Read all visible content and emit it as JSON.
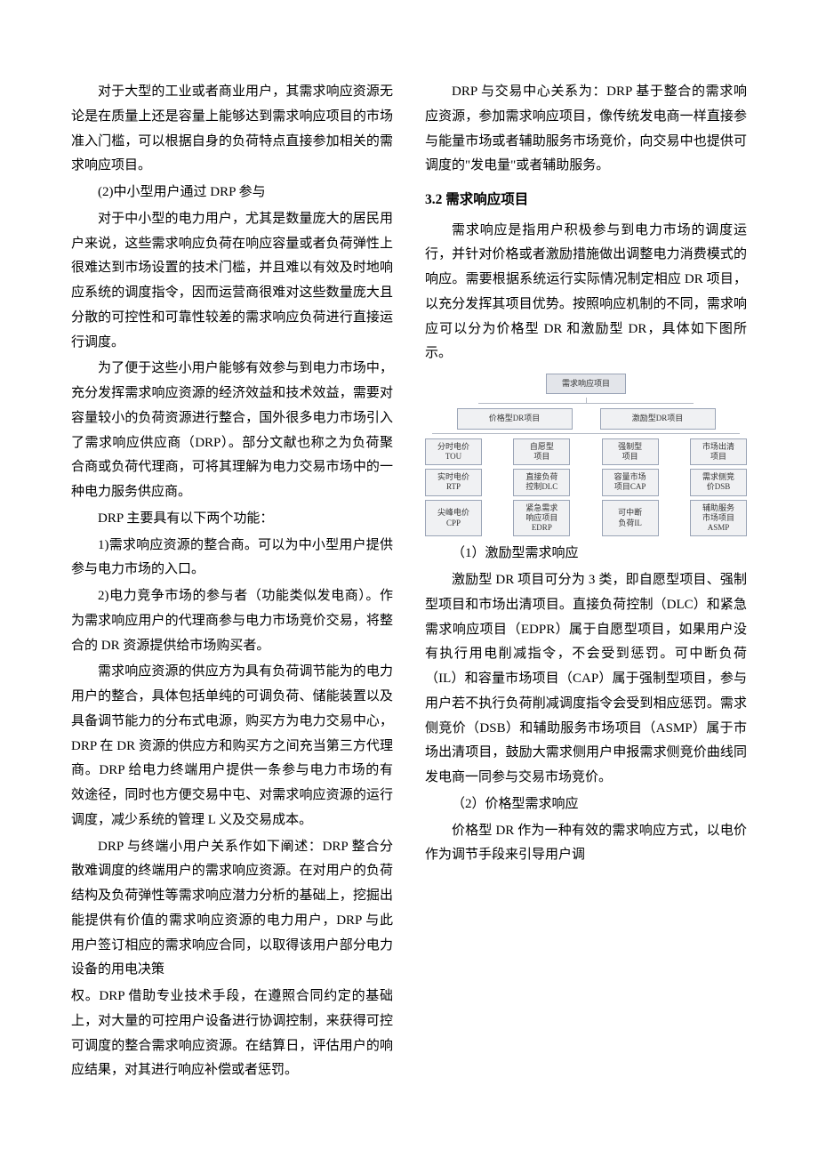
{
  "left": {
    "p1": "对于大型的工业或者商业用户，其需求响应资源无论是在质量上还是容量上能够达到需求响应项目的市场准入门槛，可以根据自身的负荷特点直接参加相关的需求响应项目。",
    "p2": "(2)中小型用户通过 DRP 参与",
    "p3": "对于中小型的电力用户，尤其是数量庞大的居民用户来说，这些需求响应负荷在响应容量或者负荷弹性上很难达到市场设置的技术门槛，并且难以有效及时地响应系统的调度指令，因而运营商很难对这些数量庞大且分散的可控性和可靠性较差的需求响应负荷进行直接运行调度。",
    "p4": "为了便于这些小用户能够有效参与到电力市场中，充分发挥需求响应资源的经济效益和技术效益，需要对容量较小的负荷资源进行整合，国外很多电力市场引入了需求响应供应商（DRP）。部分文献也称之为负荷聚合商或负荷代理商，可将其理解为电力交易市场中的一种电力服务供应商。",
    "p5": "DRP 主要具有以下两个功能：",
    "p6": "1)需求响应资源的整合商。可以为中小型用户提供参与电力市场的入口。",
    "p7": "2)电力竞争市场的参与者（功能类似发电商）。作为需求响应用户的代理商参与电力市场竞价交易，将整合的 DR 资源提供给市场购买者。",
    "p8": "需求响应资源的供应方为具有负荷调节能为的电力用户的整合，具体包括单纯的可调负荷、储能装置以及具备调节能力的分布式电源，购买方为电力交易中心，DRP 在 DR 资源的供应方和购买方之间充当第三方代理商。DRP 给电力终端用户提供一条参与电力市场的有效途径，同时也方便交易中屯、对需求响应资源的运行调度，减少系统的管理 L 义及交易成本。",
    "p9": "DRP 与终端小用户关系作如下阐述：DRP 整合分散难调度的终端用户的需求响应资源。在对用户的负荷结构及负荷弹性等需求响应潜力分析的基础上，挖掘出能提供有价值的需求响应资源的电力用户，DRP 与此用户签订相应的需求响应合同，以取得该用户部分电力设备的用电决策"
  },
  "right": {
    "p1": "权。DRP 借助专业技术手段，在遵照合同约定的基础上，对大量的可控用户设备进行协调控制，来获得可控可调度的整合需求响应资源。在结算日，评估用户的响应结果，对其进行响应补偿或者惩罚。",
    "p2": "DRP 与交易中心关系为：DRP 基于整合的需求响应资源，参加需求响应项目，像传统发电商一样直接参与能量市场或者辅助服务市场竞价，向交易中也提供可调度的\"发电量\"或者辅助服务。",
    "h32": "3.2  需求响应项目",
    "p3": "需求响应是指用户积极参与到电力市场的调度运行，并针对价格或者激励措施做出调整电力消费模式的响应。需要根据系统运行实际情况制定相应 DR 项目，以充分发挥其项目优势。按照响应机制的不同，需求响应可以分为价格型 DR 和激励型 DR，具体如下图所示。",
    "p4": "（1）激励型需求响应",
    "p5": "激励型 DR 项目可分为 3 类，即自愿型项目、强制型项目和市场出清项目。直接负荷控制（DLC）和紧急需求响应项目（EDPR）属于自愿型项目，如果用户没有执行用电削减指令，不会受到惩罚。可中断负荷（IL）和容量市场项目（CAP）属于强制型项目，参与用户若不执行负荷削减调度指令会受到相应惩罚。需求侧竞价（DSB）和辅助服务市场项目（ASMP）属于市场出清项目，鼓励大需求侧用户申报需求侧竞价曲线同发电商一同参与交易市场竞价。",
    "p6": "（2）价格型需求响应",
    "p7": "价格型 DR 作为一种有效的需求响应方式，以电价作为调节手段来引导用户调"
  },
  "diagram": {
    "root": "需求响应项目",
    "branch_left": "价格型DR项目",
    "branch_right": "激励型DR项目",
    "col1": [
      "分时电价",
      "TOU",
      "实时电价",
      "RTP",
      "尖峰电价",
      "CPP"
    ],
    "col2": [
      "自愿型",
      "项目",
      "直接负荷",
      "控制DLC",
      "紧急需求",
      "响应项目",
      "EDRP"
    ],
    "col3": [
      "强制型",
      "项目",
      "容量市场",
      "项目CAP",
      "可中断",
      "负荷IL"
    ],
    "col4": [
      "市场出清",
      "项目",
      "需求侧竞",
      "价DSB",
      "辅助服务",
      "市场项目",
      "ASMP"
    ],
    "colors": {
      "box_border": "#9aa4b6",
      "box_bg": "#f0f1f3",
      "root_bg": "#e3e5ea",
      "line": "#b3b9c4",
      "text": "#333333"
    },
    "font_size": 9
  }
}
